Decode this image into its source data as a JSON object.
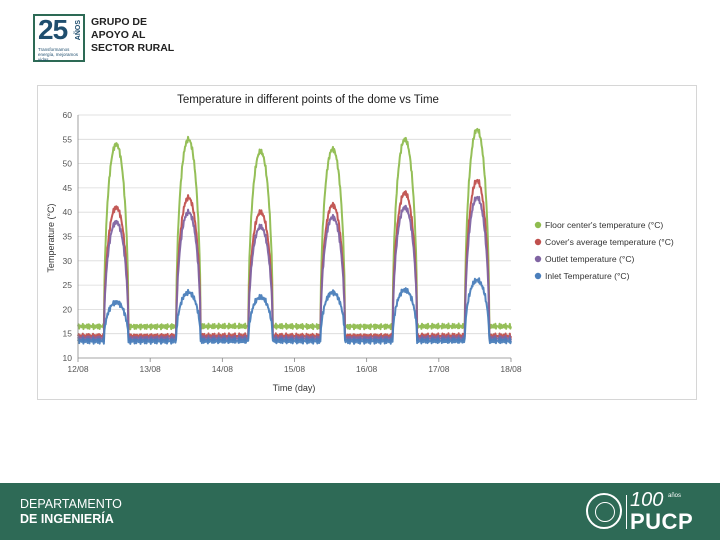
{
  "header": {
    "logo_number": "25",
    "logo_years": "AÑOS",
    "logo_tagline": "Transformamos energía, mejoramos vidas.",
    "logo_name_lines": [
      "GRUPO DE",
      "APOYO AL",
      "SECTOR RURAL"
    ]
  },
  "footer": {
    "department_line1": "DEPARTAMENTO",
    "department_line2": "DE INGENIERÍA",
    "centenary_number": "100",
    "centenary_years": "años",
    "university": "PUCP"
  },
  "colors": {
    "floor": "#8fbc4f",
    "cover": "#c0504d",
    "outlet": "#8064a2",
    "inlet": "#4a7ebb",
    "footer": "#2e6a56"
  },
  "chart_data": {
    "type": "line",
    "title": "Temperature in different points of the dome vs Time",
    "xlabel": "Time (day)",
    "ylabel": "Temperature (°C)",
    "ylim": [
      10,
      60
    ],
    "yticks": [
      "10",
      "15",
      "20",
      "25",
      "30",
      "35",
      "40",
      "45",
      "50",
      "55",
      "60"
    ],
    "xlim": [
      0,
      6
    ],
    "xticks": [
      "12/08",
      "13/08",
      "14/08",
      "15/08",
      "16/08",
      "17/08",
      "18/08"
    ],
    "legend_position": "right",
    "grid": "horizontal",
    "series": [
      {
        "name": "Floor center's temperature  (°C)",
        "color_key": "floor",
        "night_base": 16.5,
        "peaks": [
          54,
          55,
          52.5,
          53,
          55,
          57
        ]
      },
      {
        "name": "Cover's average temperature (°C)",
        "color_key": "cover",
        "night_base": 14.5,
        "peaks": [
          41,
          43,
          40,
          41.5,
          44,
          46.5
        ]
      },
      {
        "name": "Outlet temperature (°C)",
        "color_key": "outlet",
        "night_base": 14,
        "peaks": [
          38,
          40,
          37,
          39,
          41,
          43
        ]
      },
      {
        "name": "Inlet Temperature (°C)",
        "color_key": "inlet",
        "night_base": 13.5,
        "peaks": [
          21.5,
          23.5,
          22.5,
          23.5,
          24,
          26
        ]
      }
    ]
  }
}
